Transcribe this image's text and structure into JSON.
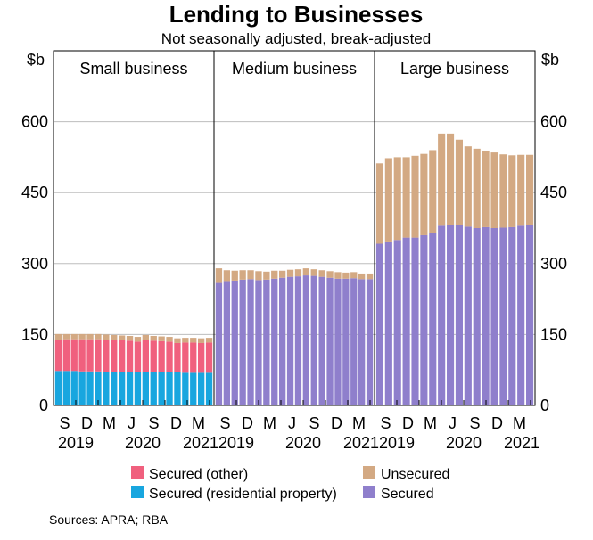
{
  "title": "Lending to Businesses",
  "subtitle": "Not seasonally adjusted, break-adjusted",
  "source": "Sources: APRA; RBA",
  "colors": {
    "secured_other": "#f0607e",
    "secured_residential": "#18a6df",
    "unsecured": "#d3a983",
    "secured": "#8f7fcc"
  },
  "chart_data": {
    "type": "bar",
    "stacked": true,
    "unit_left": "$b",
    "unit_right": "$b",
    "ylim": [
      0,
      750
    ],
    "yticks": [
      0,
      150,
      300,
      450,
      600
    ],
    "grid": true,
    "legend_position": "bottom",
    "x_tick_labels": [
      "S",
      "D",
      "M",
      "J",
      "S",
      "D",
      "M"
    ],
    "x_year_labels": [
      "2019",
      "2020",
      "2021"
    ],
    "legend": [
      {
        "key": "secured_other",
        "label": "Secured (other)"
      },
      {
        "key": "unsecured",
        "label": "Unsecured"
      },
      {
        "key": "secured_residential",
        "label": "Secured (residential property)"
      },
      {
        "key": "secured",
        "label": "Secured"
      }
    ],
    "panels": [
      {
        "title": "Small business",
        "series": [
          {
            "name": "Secured (residential property)",
            "key": "secured_residential",
            "values": [
              73,
              73,
              73,
              72,
              72,
              72,
              71,
              71,
              71,
              71,
              70,
              70,
              70,
              70,
              70,
              70,
              69,
              69,
              69,
              69
            ]
          },
          {
            "name": "Secured (other)",
            "key": "secured_other",
            "values": [
              66,
              67,
              67,
              68,
              68,
              68,
              68,
              68,
              67,
              66,
              65,
              68,
              67,
              66,
              65,
              62,
              64,
              64,
              63,
              64
            ]
          },
          {
            "name": "Unsecured",
            "key": "unsecured",
            "values": [
              12,
              11,
              11,
              11,
              11,
              11,
              11,
              10,
              10,
              10,
              10,
              11,
              10,
              10,
              10,
              10,
              10,
              10,
              10,
              10
            ]
          }
        ]
      },
      {
        "title": "Medium business",
        "series": [
          {
            "name": "Secured",
            "key": "secured",
            "values": [
              259,
              263,
              264,
              266,
              267,
              265,
              266,
              268,
              270,
              272,
              273,
              275,
              274,
              272,
              270,
              268,
              268,
              269,
              267,
              267
            ]
          },
          {
            "name": "Unsecured",
            "key": "unsecured",
            "values": [
              31,
              23,
              21,
              20,
              19,
              19,
              17,
              17,
              15,
              15,
              15,
              15,
              14,
              14,
              14,
              14,
              13,
              13,
              12,
              12
            ]
          }
        ]
      },
      {
        "title": "Large business",
        "series": [
          {
            "name": "Secured",
            "key": "secured",
            "values": [
              342,
              345,
              350,
              355,
              355,
              360,
              365,
              380,
              382,
              382,
              378,
              375,
              377,
              375,
              376,
              377,
              380,
              382
            ]
          },
          {
            "name": "Unsecured",
            "key": "unsecured",
            "values": [
              170,
              178,
              175,
              170,
              173,
              172,
              175,
              195,
              193,
              180,
              170,
              168,
              162,
              160,
              155,
              152,
              150,
              148
            ]
          }
        ]
      }
    ]
  }
}
